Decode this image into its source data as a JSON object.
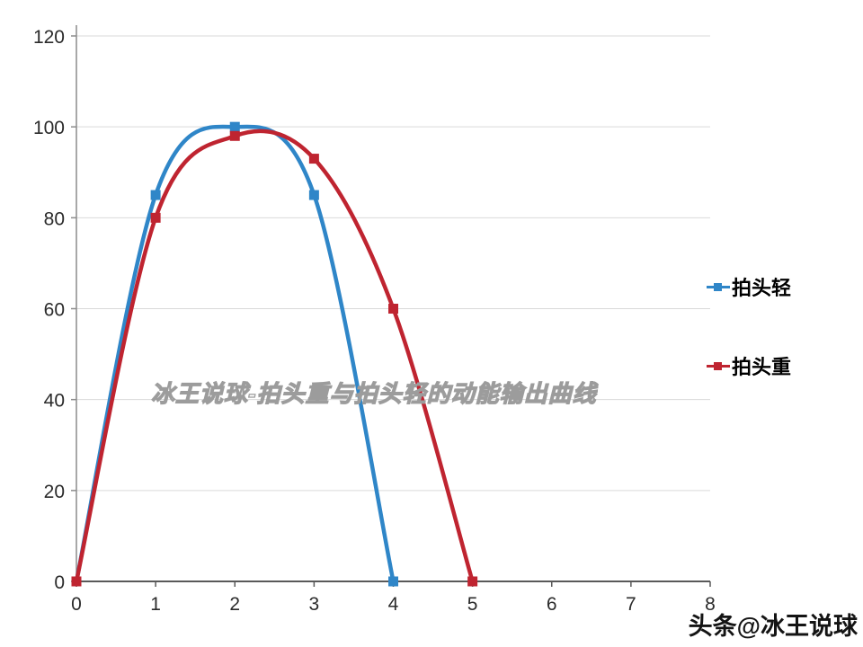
{
  "watermark": {
    "text": "冰王说球-拍头重与拍头轻的动能输出曲线"
  },
  "branding": {
    "text": "头条@冰王说球"
  },
  "chart_data": {
    "type": "line",
    "title": "",
    "xlabel": "",
    "ylabel": "",
    "xlim": [
      0,
      8
    ],
    "ylim": [
      0,
      120
    ],
    "x_ticks": [
      0,
      1,
      2,
      3,
      4,
      5,
      6,
      7,
      8
    ],
    "y_ticks": [
      0,
      20,
      40,
      60,
      80,
      100,
      120
    ],
    "grid": "horizontal",
    "legend_position": "right",
    "colors": {
      "blue": "#2f86c8",
      "red": "#bf2430",
      "gridline": "#d9d9d9",
      "axis_y": "#8c8c8c",
      "axis_x": "#595959"
    },
    "series": [
      {
        "name": "拍头轻",
        "color": "#2f86c8",
        "x": [
          0,
          1,
          2,
          3,
          4
        ],
        "values": [
          0,
          85,
          100,
          85,
          0
        ]
      },
      {
        "name": "拍头重",
        "color": "#bf2430",
        "x": [
          0,
          1,
          2,
          3,
          4,
          5
        ],
        "values": [
          0,
          80,
          98,
          93,
          60,
          0
        ]
      }
    ]
  }
}
